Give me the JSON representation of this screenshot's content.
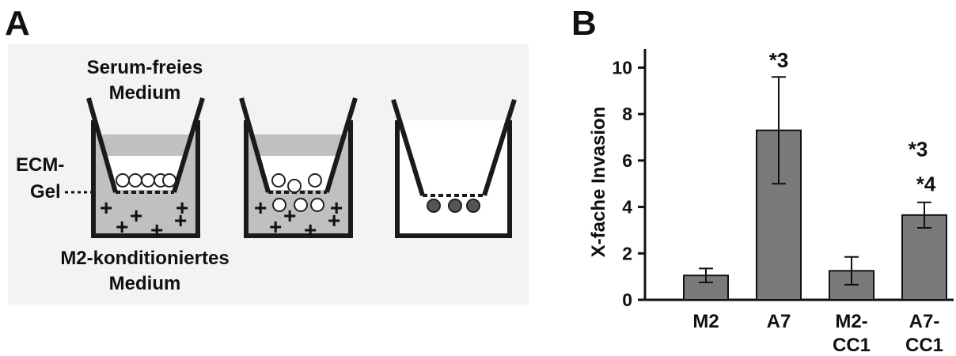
{
  "panel_a": {
    "letter": "A",
    "labels": {
      "top_line1": "Serum-freies",
      "top_line2": "Medium",
      "ecm_line1": "ECM-",
      "ecm_line2": "Gel",
      "bottom_line1": "M2-konditioniertes",
      "bottom_line2": "Medium"
    },
    "colors": {
      "background": "#f3f3f3",
      "medium": "#c0c0c0",
      "outline": "#1a1a1a",
      "invaded_cell": "#555555"
    }
  },
  "panel_b": {
    "letter": "B"
  },
  "chart_data": {
    "type": "bar",
    "title": "",
    "xlabel": "",
    "ylabel": "X-fache Invasion",
    "ylim": [
      0,
      10.8
    ],
    "yticks": [
      "0",
      "2",
      "4",
      "6",
      "8",
      "10"
    ],
    "categories": [
      {
        "line1": "M2",
        "line2": ""
      },
      {
        "line1": "A7",
        "line2": ""
      },
      {
        "line1": "M2-",
        "line2": "CC1"
      },
      {
        "line1": "A7-",
        "line2": "CC1"
      }
    ],
    "values": [
      1.05,
      7.3,
      1.25,
      3.65
    ],
    "errors": [
      0.3,
      2.3,
      0.6,
      0.55
    ],
    "annotations": [
      {
        "category": 1,
        "line1": "*3",
        "line2": ""
      },
      {
        "category": 3,
        "line1": "*3",
        "line2": "*4"
      }
    ],
    "bar_color": "#7a7a7a",
    "grid": false,
    "legend": "none"
  }
}
